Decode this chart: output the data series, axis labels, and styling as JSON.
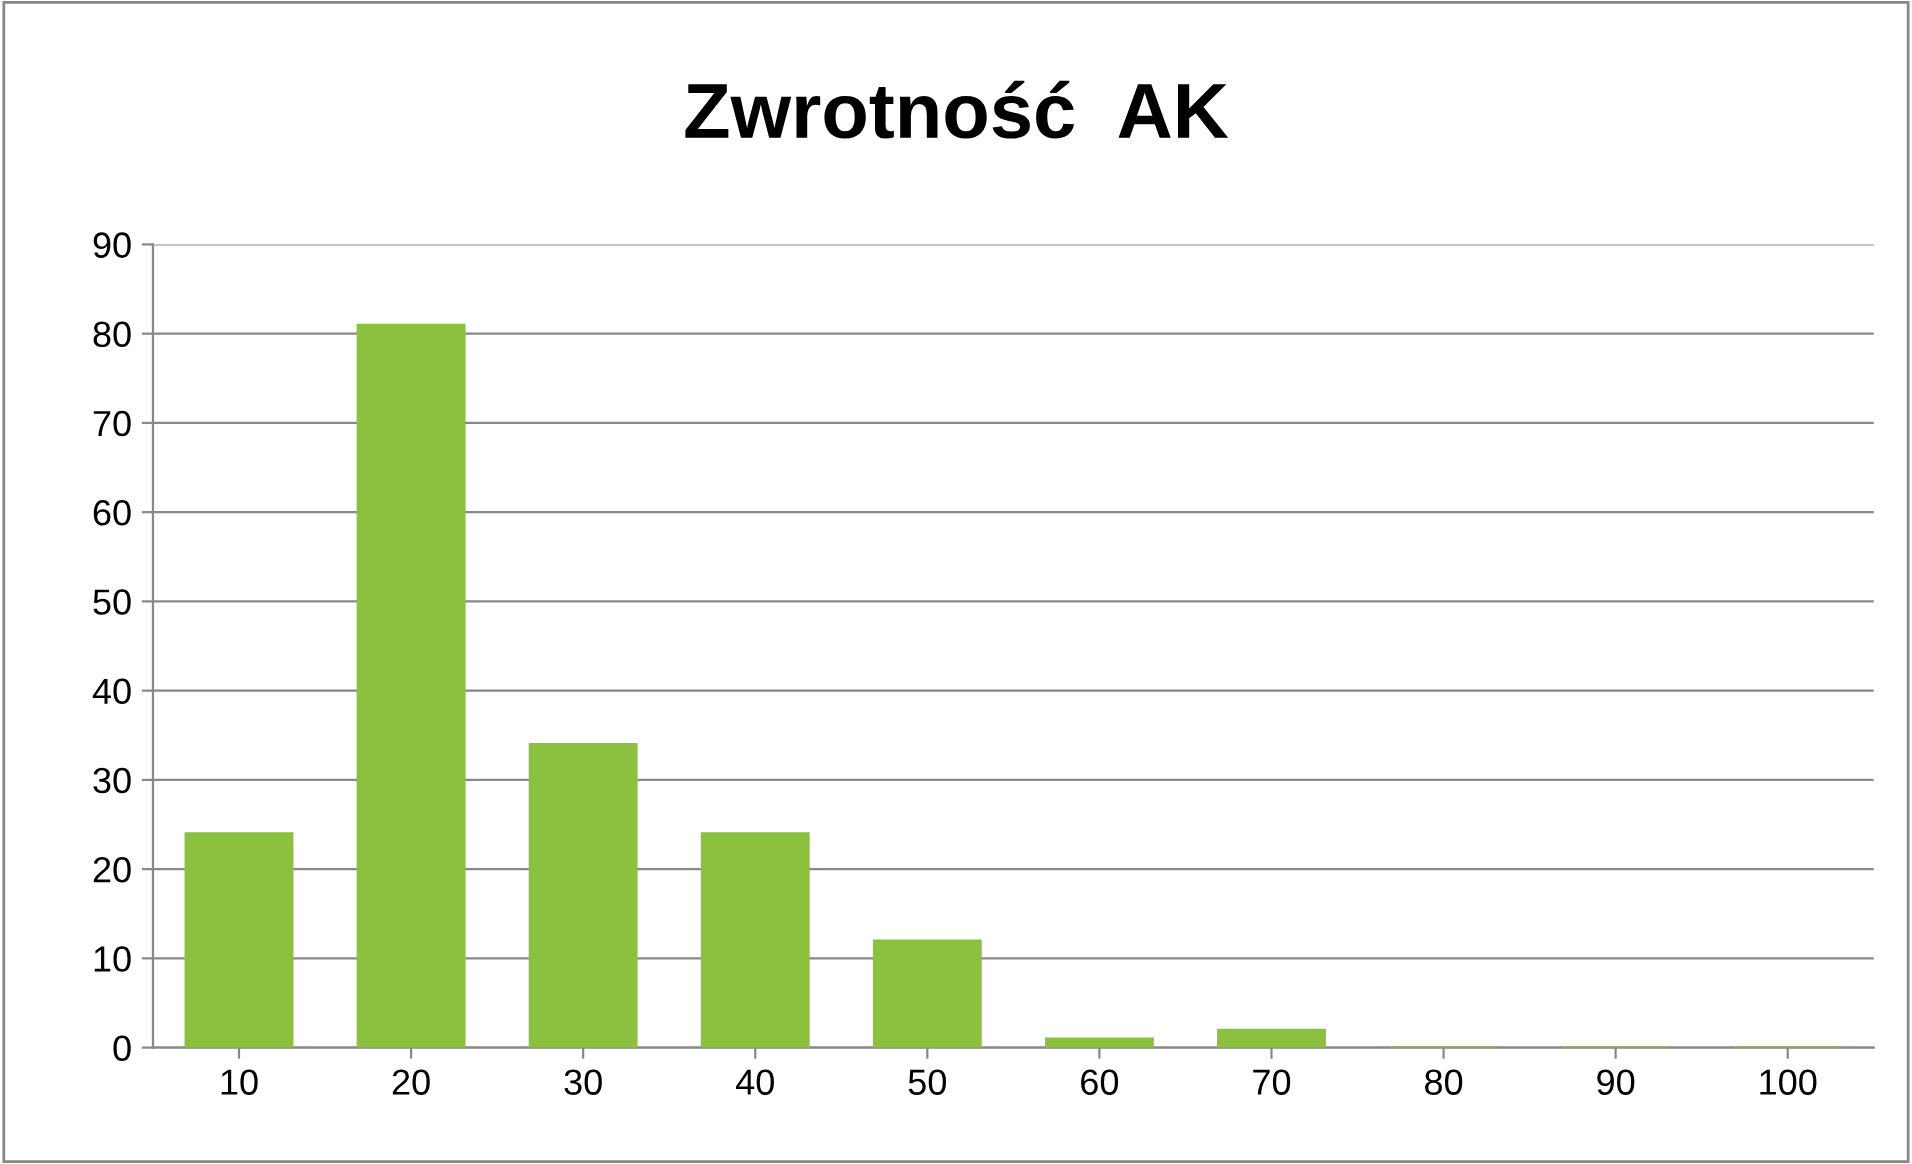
{
  "chart_data": {
    "type": "bar",
    "title": "Zwrotność  AK",
    "categories": [
      "10",
      "20",
      "30",
      "40",
      "50",
      "60",
      "70",
      "80",
      "90",
      "100"
    ],
    "values": [
      24,
      81,
      34,
      24,
      12,
      1,
      2,
      0,
      0,
      0
    ],
    "color": "#8cc13f",
    "ylim": [
      0,
      90
    ],
    "yticks": [
      0,
      10,
      20,
      30,
      40,
      50,
      60,
      70,
      80,
      90
    ],
    "grid": "y"
  }
}
